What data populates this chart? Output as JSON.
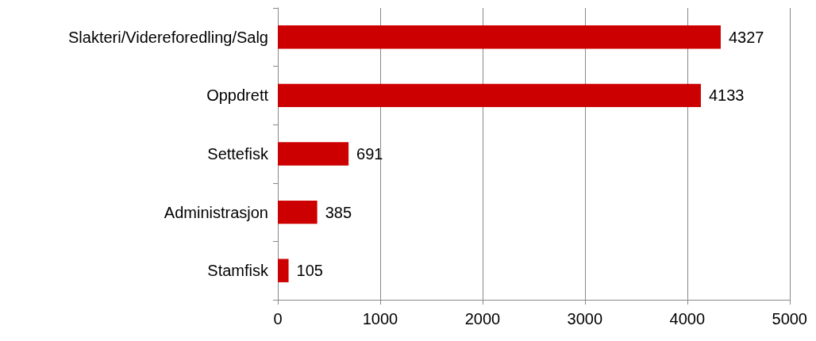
{
  "chart_data": {
    "type": "bar",
    "orientation": "horizontal",
    "categories": [
      "Slakteri/Videreforedling/Salg",
      "Oppdrett",
      "Settefisk",
      "Administrasjon",
      "Stamfisk"
    ],
    "values": [
      4327,
      4133,
      691,
      385,
      105
    ],
    "color": "#cc0000",
    "xlim": [
      0,
      5000
    ],
    "xticks": [
      0,
      1000,
      2000,
      3000,
      4000,
      5000
    ],
    "grid": "x",
    "data_labels": true
  }
}
